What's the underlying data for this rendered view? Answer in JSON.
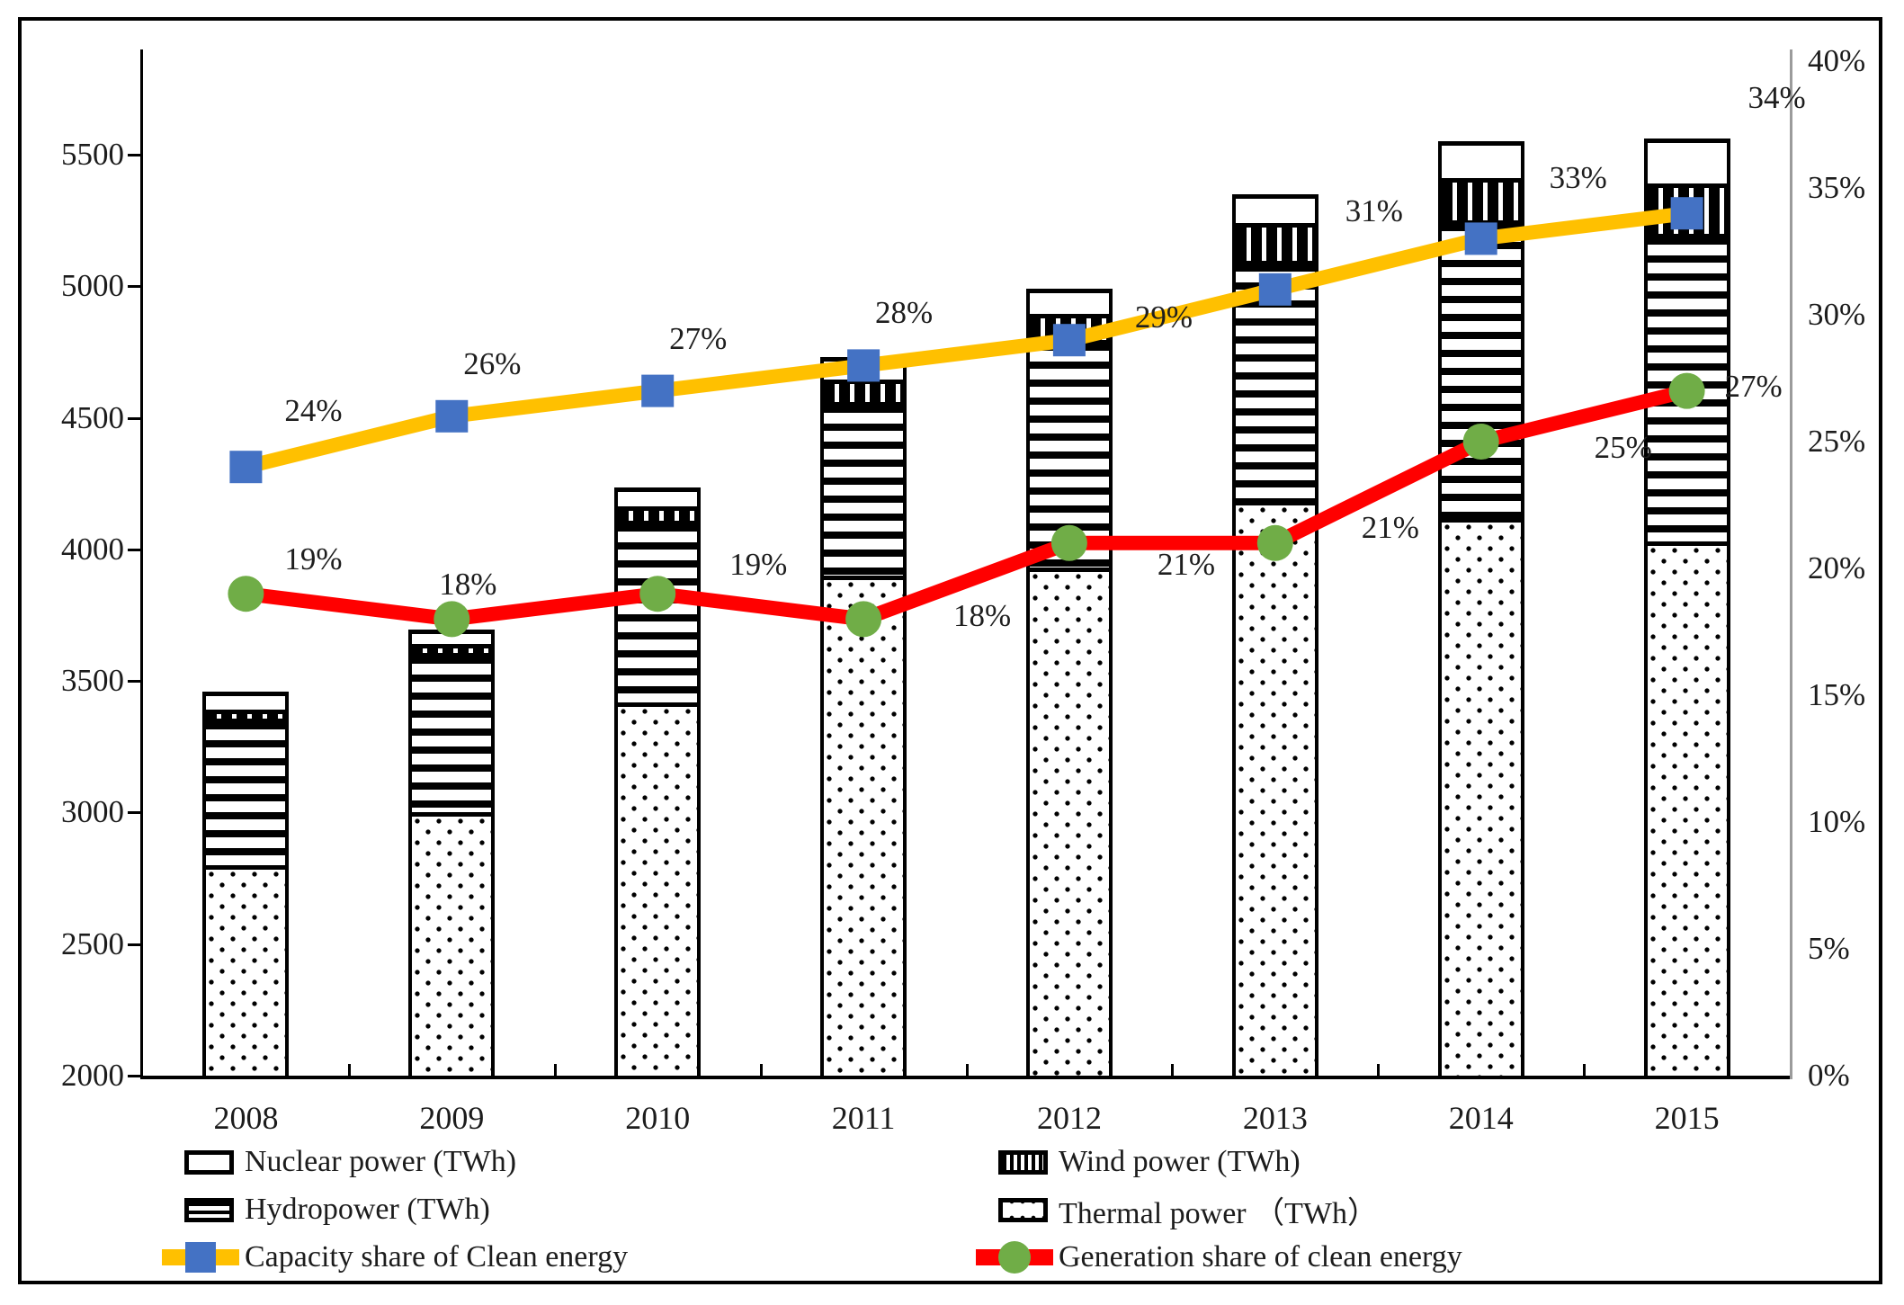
{
  "figure": {
    "type_note": "combo chart: stacked pattern bars (left axis, TWh) + two share lines (right axis, %)",
    "colors": {
      "capacity_line": "#FFC000",
      "capacity_marker": "#4472C4",
      "generation_line": "#FF0000",
      "generation_marker": "#70AD47",
      "bar_ink": "#000000",
      "text": "#1c1c1c",
      "right_axis_line": "#9b9b9b"
    }
  },
  "chart_data": {
    "type": "combo-bar-line",
    "categories": [
      "2008",
      "2009",
      "2010",
      "2011",
      "2012",
      "2013",
      "2014",
      "2015"
    ],
    "bar_series": [
      {
        "name": "Thermal power (TWh)",
        "pattern": "dots",
        "values": [
          2800,
          3000,
          3420,
          3900,
          3930,
          4185,
          4120,
          4030
        ]
      },
      {
        "name": "Hydropower (TWh)",
        "pattern": "horizontal-stripes",
        "values": [
          555,
          605,
          690,
          660,
          865,
          910,
          1130,
          1170
        ]
      },
      {
        "name": "Wind power (TWh)",
        "pattern": "vertical-stripes",
        "values": [
          35,
          35,
          55,
          85,
          100,
          145,
          160,
          190
        ]
      },
      {
        "name": "Nuclear power (TWh)",
        "pattern": "plain-white",
        "values": [
          70,
          55,
          70,
          85,
          95,
          110,
          140,
          170
        ]
      }
    ],
    "bar_totals": [
      3460,
      3695,
      4235,
      4730,
      4990,
      5350,
      5550,
      5560
    ],
    "line_series": [
      {
        "name": "Capacity share of Clean energy",
        "values_pct": [
          24,
          26,
          27,
          28,
          29,
          31,
          33,
          34
        ],
        "labels": [
          "24%",
          "26%",
          "27%",
          "28%",
          "29%",
          "31%",
          "33%",
          "34%"
        ]
      },
      {
        "name": "Generation share of clean energy",
        "values_pct": [
          19,
          18,
          19,
          18,
          21,
          21,
          25,
          27
        ],
        "labels": [
          "19%",
          "18%",
          "19%",
          "18%",
          "21%",
          "21%",
          "25%",
          "27%"
        ]
      }
    ],
    "left_axis": {
      "ticks": [
        2000,
        2500,
        3000,
        3500,
        4000,
        4500,
        5000,
        5500
      ],
      "range": [
        2000,
        5750
      ],
      "grid": false
    },
    "right_axis": {
      "ticks": [
        "0%",
        "5%",
        "10%",
        "15%",
        "20%",
        "25%",
        "30%",
        "35%",
        "40%"
      ],
      "range": [
        0,
        40
      ]
    },
    "legend_position": "bottom-two-columns"
  },
  "legend": {
    "nuclear": "Nuclear power (TWh)",
    "hydro": "Hydropower (TWh)",
    "capacity": "Capacity share of Clean energy",
    "wind": "Wind power (TWh)",
    "thermal": "Thermal power （TWh）",
    "generation": "Generation share of clean energy"
  }
}
